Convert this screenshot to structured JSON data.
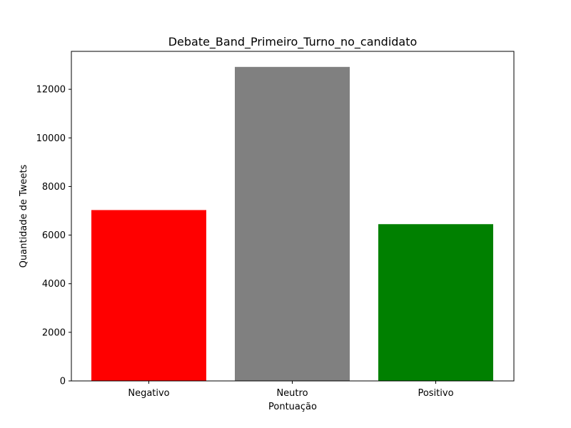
{
  "chart_data": {
    "type": "bar",
    "title": "Debate_Band_Primeiro_Turno_no_candidato",
    "xlabel": "Pontuação",
    "ylabel": "Quantidade de Tweets",
    "categories": [
      "Negativo",
      "Neutro",
      "Positivo"
    ],
    "values": [
      7030,
      12920,
      6450
    ],
    "colors": [
      "#ff0000",
      "#808080",
      "#008000"
    ],
    "ylim": [
      0,
      13560
    ],
    "yticks": [
      0,
      2000,
      4000,
      6000,
      8000,
      10000,
      12000
    ],
    "grid": false,
    "legend": "none"
  }
}
